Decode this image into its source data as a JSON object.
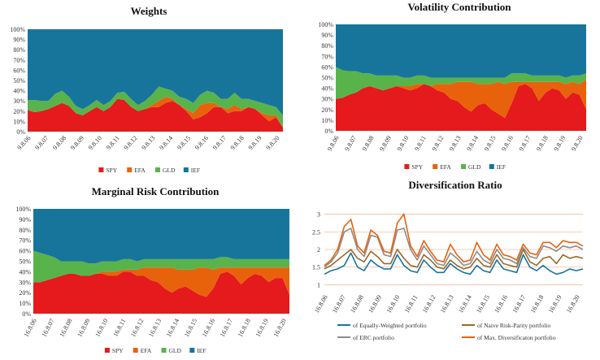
{
  "colors": {
    "SPY": "#e41a1c",
    "EFA": "#e8620c",
    "GLD": "#59b34b",
    "IEF": "#17759c",
    "ew": "#17759c",
    "nrp": "#9a6a2a",
    "erc": "#8c8c8c",
    "mdp": "#e8620c"
  },
  "chart_data": [
    {
      "type": "area",
      "stacked": true,
      "title": "Weights",
      "yticks": [
        "0%",
        "10%",
        "20%",
        "30%",
        "40%",
        "50%",
        "60%",
        "70%",
        "80%",
        "90%",
        "100%"
      ],
      "ylim": [
        0,
        1
      ],
      "xticks": [
        "9.8.06",
        "9.8.07",
        "9.8.08",
        "9.8.09",
        "9.8.10",
        "9.8.11",
        "9.8.12",
        "9.8.13",
        "9.8.14",
        "9.8.15",
        "9.8.16",
        "9.8.17",
        "9.8.18",
        "9.8.19",
        "9.8.20"
      ],
      "legend": [
        "SPY",
        "EFA",
        "GLD",
        "IEF"
      ],
      "legend_position": "bottom",
      "series": [
        {
          "name": "SPY",
          "values": [
            0.21,
            0.19,
            0.2,
            0.22,
            0.25,
            0.28,
            0.25,
            0.18,
            0.16,
            0.2,
            0.24,
            0.2,
            0.24,
            0.32,
            0.31,
            0.24,
            0.2,
            0.22,
            0.24,
            0.24,
            0.28,
            0.3,
            0.26,
            0.2,
            0.12,
            0.14,
            0.18,
            0.24,
            0.24,
            0.18,
            0.2,
            0.2,
            0.24,
            0.22,
            0.16,
            0.1,
            0.14,
            0.04
          ]
        },
        {
          "name": "EFA",
          "values": [
            0.0,
            0.0,
            0.0,
            0.0,
            0.0,
            0.0,
            0.0,
            0.0,
            0.0,
            0.0,
            0.0,
            0.0,
            0.0,
            0.0,
            0.0,
            0.0,
            0.0,
            0.0,
            0.02,
            0.06,
            0.06,
            0.02,
            0.0,
            0.02,
            0.06,
            0.12,
            0.1,
            0.04,
            0.0,
            0.04,
            0.06,
            0.02,
            0.0,
            0.0,
            0.02,
            0.06,
            0.02,
            0.0
          ]
        },
        {
          "name": "GLD",
          "values": [
            0.1,
            0.12,
            0.1,
            0.08,
            0.12,
            0.12,
            0.09,
            0.07,
            0.06,
            0.06,
            0.07,
            0.06,
            0.06,
            0.06,
            0.08,
            0.08,
            0.06,
            0.08,
            0.1,
            0.14,
            0.08,
            0.08,
            0.08,
            0.1,
            0.1,
            0.1,
            0.12,
            0.1,
            0.08,
            0.1,
            0.12,
            0.1,
            0.08,
            0.08,
            0.1,
            0.1,
            0.08,
            0.12
          ]
        },
        {
          "name": "IEF",
          "values": [
            0.69,
            0.69,
            0.7,
            0.7,
            0.63,
            0.6,
            0.66,
            0.75,
            0.78,
            0.74,
            0.69,
            0.74,
            0.7,
            0.62,
            0.61,
            0.68,
            0.74,
            0.7,
            0.64,
            0.56,
            0.58,
            0.6,
            0.66,
            0.68,
            0.72,
            0.64,
            0.6,
            0.62,
            0.68,
            0.68,
            0.62,
            0.68,
            0.68,
            0.7,
            0.72,
            0.74,
            0.76,
            0.84
          ]
        }
      ]
    },
    {
      "type": "area",
      "stacked": true,
      "title": "Volatility Contribution",
      "yticks": [
        "0%",
        "10%",
        "20%",
        "30%",
        "40%",
        "50%",
        "60%",
        "70%",
        "80%",
        "90%",
        "100%"
      ],
      "ylim": [
        0,
        1
      ],
      "xticks": [
        "9.8.06",
        "9.8.07",
        "9.8.08",
        "9.8.09",
        "9.8.10",
        "9.8.11",
        "9.8.12",
        "9.8.13",
        "9.8.14",
        "9.8.15",
        "9.8.16",
        "9.8.17",
        "9.8.18",
        "9.8.19",
        "9.8.20"
      ],
      "legend": [
        "SPY",
        "EFA",
        "GLD",
        "IEF"
      ],
      "legend_position": "bottom",
      "series": [
        {
          "name": "SPY",
          "values": [
            0.3,
            0.31,
            0.34,
            0.36,
            0.4,
            0.42,
            0.4,
            0.38,
            0.4,
            0.42,
            0.4,
            0.38,
            0.4,
            0.44,
            0.42,
            0.38,
            0.36,
            0.3,
            0.28,
            0.22,
            0.18,
            0.24,
            0.26,
            0.2,
            0.16,
            0.12,
            0.26,
            0.42,
            0.44,
            0.4,
            0.28,
            0.36,
            0.4,
            0.38,
            0.3,
            0.36,
            0.34,
            0.2
          ]
        },
        {
          "name": "EFA",
          "values": [
            0.0,
            0.0,
            0.0,
            0.0,
            0.0,
            0.0,
            0.0,
            0.0,
            0.0,
            0.0,
            0.02,
            0.04,
            0.04,
            0.0,
            0.0,
            0.06,
            0.08,
            0.14,
            0.18,
            0.24,
            0.28,
            0.2,
            0.18,
            0.24,
            0.3,
            0.32,
            0.2,
            0.04,
            0.02,
            0.06,
            0.18,
            0.1,
            0.06,
            0.08,
            0.14,
            0.1,
            0.1,
            0.28
          ]
        },
        {
          "name": "GLD",
          "values": [
            0.3,
            0.26,
            0.22,
            0.2,
            0.14,
            0.12,
            0.12,
            0.14,
            0.12,
            0.1,
            0.08,
            0.08,
            0.08,
            0.08,
            0.08,
            0.06,
            0.06,
            0.06,
            0.04,
            0.04,
            0.04,
            0.06,
            0.06,
            0.06,
            0.04,
            0.06,
            0.08,
            0.08,
            0.08,
            0.06,
            0.06,
            0.06,
            0.06,
            0.06,
            0.06,
            0.06,
            0.08,
            0.06
          ]
        },
        {
          "name": "IEF",
          "values": [
            0.4,
            0.43,
            0.44,
            0.44,
            0.46,
            0.46,
            0.48,
            0.48,
            0.48,
            0.48,
            0.5,
            0.5,
            0.48,
            0.48,
            0.5,
            0.5,
            0.5,
            0.5,
            0.5,
            0.5,
            0.5,
            0.5,
            0.5,
            0.5,
            0.5,
            0.5,
            0.46,
            0.46,
            0.46,
            0.48,
            0.48,
            0.48,
            0.48,
            0.48,
            0.5,
            0.48,
            0.48,
            0.46
          ]
        }
      ]
    },
    {
      "type": "area",
      "stacked": true,
      "title": "Marginal Risk Contribution",
      "yticks": [
        "0%",
        "10%",
        "20%",
        "30%",
        "40%",
        "50%",
        "60%",
        "70%",
        "80%",
        "90%",
        "100%"
      ],
      "ylim": [
        0,
        1
      ],
      "xticks": [
        "16.8.06",
        "16.8.07",
        "16.8.08",
        "16.8.09",
        "16.8.10",
        "16.8.11",
        "16.8.12",
        "16.8.13",
        "16.8.14",
        "16.8.15",
        "16.8.16",
        "16.8.17",
        "16.8.18",
        "16.8.19",
        "16.8.20"
      ],
      "legend": [
        "SPY",
        "EFA",
        "GLD",
        "IEF"
      ],
      "legend_position": "bottom",
      "series": [
        {
          "name": "SPY",
          "values": [
            0.3,
            0.3,
            0.32,
            0.34,
            0.36,
            0.38,
            0.38,
            0.36,
            0.36,
            0.38,
            0.38,
            0.36,
            0.36,
            0.4,
            0.4,
            0.36,
            0.36,
            0.32,
            0.3,
            0.24,
            0.2,
            0.24,
            0.26,
            0.22,
            0.18,
            0.16,
            0.24,
            0.38,
            0.4,
            0.36,
            0.28,
            0.34,
            0.38,
            0.36,
            0.3,
            0.34,
            0.34,
            0.18
          ]
        },
        {
          "name": "EFA",
          "values": [
            0.0,
            0.0,
            0.0,
            0.0,
            0.0,
            0.0,
            0.0,
            0.0,
            0.0,
            0.0,
            0.02,
            0.04,
            0.04,
            0.02,
            0.02,
            0.06,
            0.08,
            0.12,
            0.14,
            0.2,
            0.24,
            0.18,
            0.16,
            0.2,
            0.26,
            0.28,
            0.18,
            0.06,
            0.04,
            0.08,
            0.16,
            0.1,
            0.06,
            0.08,
            0.14,
            0.1,
            0.1,
            0.26
          ]
        },
        {
          "name": "GLD",
          "values": [
            0.3,
            0.28,
            0.24,
            0.2,
            0.14,
            0.12,
            0.12,
            0.14,
            0.12,
            0.1,
            0.1,
            0.1,
            0.1,
            0.1,
            0.1,
            0.08,
            0.08,
            0.08,
            0.08,
            0.08,
            0.08,
            0.1,
            0.1,
            0.1,
            0.08,
            0.08,
            0.1,
            0.1,
            0.1,
            0.08,
            0.08,
            0.08,
            0.08,
            0.08,
            0.08,
            0.08,
            0.08,
            0.08
          ]
        },
        {
          "name": "IEF",
          "values": [
            0.4,
            0.42,
            0.44,
            0.46,
            0.5,
            0.5,
            0.5,
            0.5,
            0.52,
            0.52,
            0.5,
            0.5,
            0.5,
            0.48,
            0.48,
            0.5,
            0.48,
            0.48,
            0.48,
            0.48,
            0.48,
            0.48,
            0.48,
            0.48,
            0.48,
            0.48,
            0.48,
            0.46,
            0.46,
            0.48,
            0.48,
            0.48,
            0.48,
            0.48,
            0.48,
            0.48,
            0.48,
            0.48
          ]
        }
      ]
    },
    {
      "type": "line",
      "title": "Diversification Ratio",
      "ylim": [
        0.85,
        3.15
      ],
      "yticks": [
        "1",
        "1.5",
        "2",
        "2.5",
        "3"
      ],
      "ytick_values": [
        1,
        1.5,
        2,
        2.5,
        3
      ],
      "xticks": [
        "16.8.06",
        "16.8.07",
        "16.8.08",
        "16.8.09",
        "16.8.10",
        "16.8.11",
        "16.8.12",
        "16.8.13",
        "16.8.14",
        "16.8.15",
        "16.8.16",
        "16.8.17",
        "16.8.18",
        "16.8.19",
        "16.8.20"
      ],
      "grid": "horizontal",
      "legend_position": "bottom",
      "series": [
        {
          "name": "of Equally-Weighted portfolio",
          "values": [
            1.3,
            1.4,
            1.45,
            1.55,
            1.9,
            1.5,
            1.4,
            1.7,
            1.55,
            1.45,
            1.45,
            1.85,
            1.55,
            1.4,
            1.35,
            1.7,
            1.5,
            1.35,
            1.35,
            1.6,
            1.45,
            1.35,
            1.3,
            1.55,
            1.4,
            1.35,
            1.7,
            1.45,
            1.4,
            1.35,
            1.85,
            1.5,
            1.4,
            1.55,
            1.4,
            1.3,
            1.35,
            1.45,
            1.4,
            1.45
          ]
        },
        {
          "name": "of Naive Risk-Parity portfolio",
          "values": [
            1.45,
            1.55,
            1.7,
            1.85,
            2.0,
            1.75,
            1.65,
            1.95,
            1.8,
            1.6,
            1.6,
            2.0,
            1.75,
            1.55,
            1.5,
            1.85,
            1.7,
            1.5,
            1.45,
            1.7,
            1.55,
            1.45,
            1.5,
            1.75,
            1.55,
            1.5,
            1.85,
            1.6,
            1.55,
            1.5,
            2.0,
            1.65,
            1.55,
            1.75,
            1.8,
            1.6,
            1.85,
            1.75,
            1.8,
            1.75
          ]
        },
        {
          "name": "of ERC portfolio",
          "values": [
            1.5,
            1.65,
            1.9,
            2.5,
            2.6,
            2.0,
            1.8,
            2.4,
            2.35,
            1.85,
            1.8,
            2.55,
            2.6,
            2.0,
            1.7,
            2.1,
            1.85,
            1.6,
            1.55,
            1.9,
            1.75,
            1.55,
            1.6,
            1.95,
            1.7,
            1.6,
            2.0,
            1.75,
            1.7,
            1.6,
            2.05,
            1.8,
            1.75,
            2.1,
            2.05,
            1.95,
            2.1,
            2.05,
            2.1,
            2.0
          ]
        },
        {
          "name": "of Max. Diversificaton portfolio",
          "values": [
            1.55,
            1.7,
            2.0,
            2.65,
            2.85,
            2.1,
            1.9,
            2.55,
            2.4,
            1.95,
            1.9,
            2.75,
            3.0,
            2.1,
            1.8,
            2.25,
            1.95,
            1.7,
            1.65,
            2.15,
            1.85,
            1.65,
            1.7,
            2.2,
            1.85,
            1.7,
            2.15,
            1.85,
            1.8,
            1.7,
            2.15,
            1.9,
            1.85,
            2.2,
            2.2,
            2.05,
            2.25,
            2.2,
            2.2,
            2.1
          ]
        }
      ]
    }
  ]
}
